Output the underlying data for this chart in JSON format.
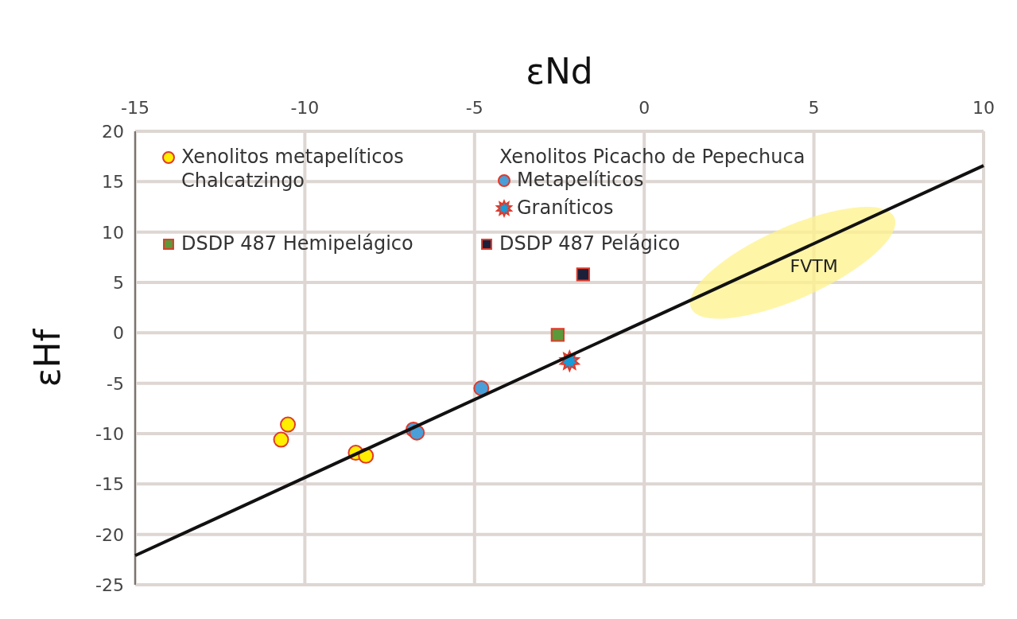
{
  "chart_data": {
    "type": "scatter",
    "xlabel": "εNd",
    "ylabel": "εHf",
    "xlim": [
      -15,
      10
    ],
    "xticks": [
      -15,
      -10,
      -5,
      0,
      5,
      10
    ],
    "ylim": [
      -25,
      20
    ],
    "yticks": [
      -25,
      -20,
      -15,
      -10,
      -5,
      0,
      5,
      10,
      15,
      20
    ],
    "grid": true,
    "legend": "top left",
    "legend_title": "Xenolitos Picacho de Pepechuca",
    "annotations": [
      "FVTM"
    ],
    "series": [
      {
        "name": "Xenolitos metapelíticos Chalcatzingo",
        "color": "#ffee00",
        "marker": "circle",
        "x": [
          -10.7,
          -10.5,
          -8.5,
          -8.2
        ],
        "values": [
          -10.6,
          -9.1,
          -11.9,
          -12.2
        ]
      },
      {
        "name": "Metapelíticos",
        "color": "#4a9fd8",
        "marker": "circle",
        "x": [
          -6.8,
          -6.7,
          -4.8
        ],
        "values": [
          -9.6,
          -9.9,
          -5.5
        ]
      },
      {
        "name": "Graníticos",
        "color": "#1a9ad6",
        "marker": "star",
        "x": [
          -2.2
        ],
        "values": [
          -2.8
        ]
      },
      {
        "name": "DSDP 487 Hemipelágico",
        "color": "#5a9a3a",
        "marker": "square",
        "x": [
          -2.55
        ],
        "values": [
          -0.2
        ]
      },
      {
        "name": "DSDP 487 Pelágico",
        "color": "#1c1f3a",
        "marker": "square",
        "x": [
          -1.8
        ],
        "values": [
          5.8
        ]
      },
      {
        "type": "line",
        "color": "#111111",
        "x": [
          -15,
          10
        ],
        "values": [
          -22.1,
          16.6
        ]
      }
    ]
  }
}
